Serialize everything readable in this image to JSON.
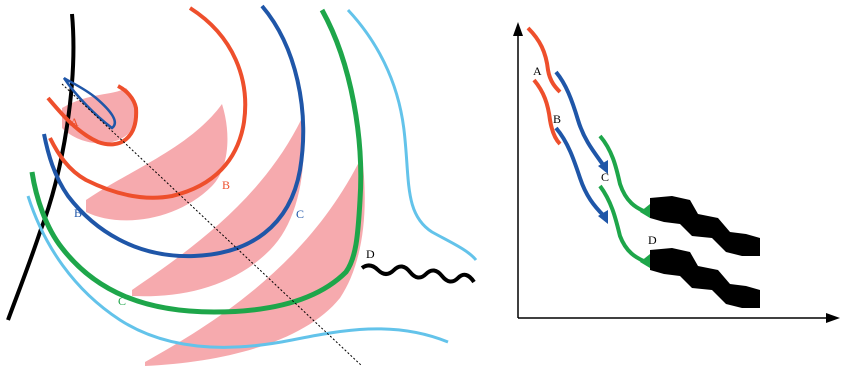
{
  "colors": {
    "red": "#ee4f2c",
    "blue": "#1f56a8",
    "green": "#1ea64a",
    "light_blue": "#63c3ea",
    "pink_fill": "#f6aaae",
    "black": "#000000"
  },
  "left_panel": {
    "labels": {
      "a": "A",
      "b_red": "B",
      "b_blue": "B",
      "c_blue": "C",
      "c_green": "C",
      "d": "D"
    }
  },
  "right_panel": {
    "labels": {
      "a": "A",
      "b": "B",
      "c": "C",
      "d": "D"
    }
  }
}
